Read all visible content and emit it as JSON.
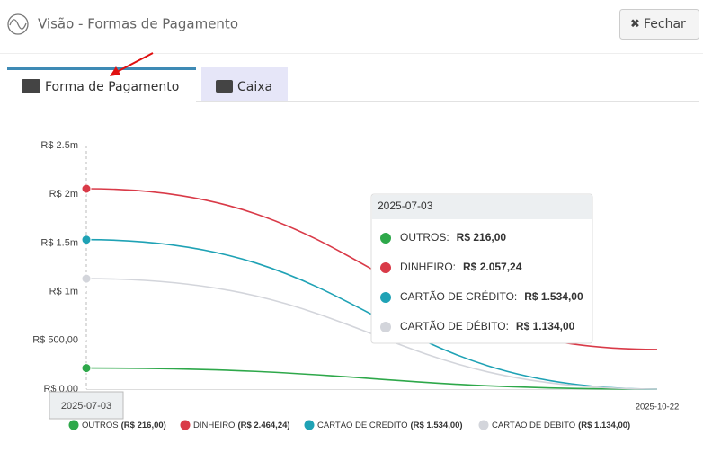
{
  "header": {
    "title": "Visão - Formas de Pagamento",
    "close": "Fechar"
  },
  "tabs": [
    "Forma de Pagamento",
    "Caixa"
  ],
  "chart_data": {
    "type": "line",
    "x": [
      "2025-07-03",
      "2025-10-22"
    ],
    "series": [
      {
        "name": "OUTROS",
        "color": "#2ea84a",
        "values": [
          216,
          0
        ],
        "total_label": "(R$ 216,00)"
      },
      {
        "name": "DINHEIRO",
        "color": "#d93a48",
        "values": [
          2057.24,
          407
        ],
        "total_label": "(R$ 2.464,24)"
      },
      {
        "name": "CARTÃO DE CRÉDITO",
        "color": "#1fa2b5",
        "values": [
          1534,
          0
        ],
        "total_label": "(R$ 1.534,00)"
      },
      {
        "name": "CARTÃO DE DÉBITO",
        "color": "#d3d5db",
        "values": [
          1134,
          0
        ],
        "total_label": "(R$ 1.134,00)"
      }
    ],
    "ylim": [
      0,
      2500
    ],
    "yticks": [
      {
        "value": 0,
        "label": "R$ 0,00"
      },
      {
        "value": 500,
        "label": "R$ 500,00"
      },
      {
        "value": 1000,
        "label": "R$ 1m"
      },
      {
        "value": 1500,
        "label": "R$ 1.5m"
      },
      {
        "value": 2000,
        "label": "R$ 2m"
      },
      {
        "value": 2500,
        "label": "R$ 2.5m"
      }
    ],
    "tooltip": {
      "title": "2025-07-03",
      "items": [
        {
          "label": "OUTROS:",
          "value": "R$ 216,00"
        },
        {
          "label": "DINHEIRO:",
          "value": "R$ 2.057,24"
        },
        {
          "label": "CARTÃO DE CRÉDITO:",
          "value": "R$ 1.534,00"
        },
        {
          "label": "CARTÃO DE DÉBITO:",
          "value": "R$ 1.134,00"
        }
      ]
    }
  }
}
